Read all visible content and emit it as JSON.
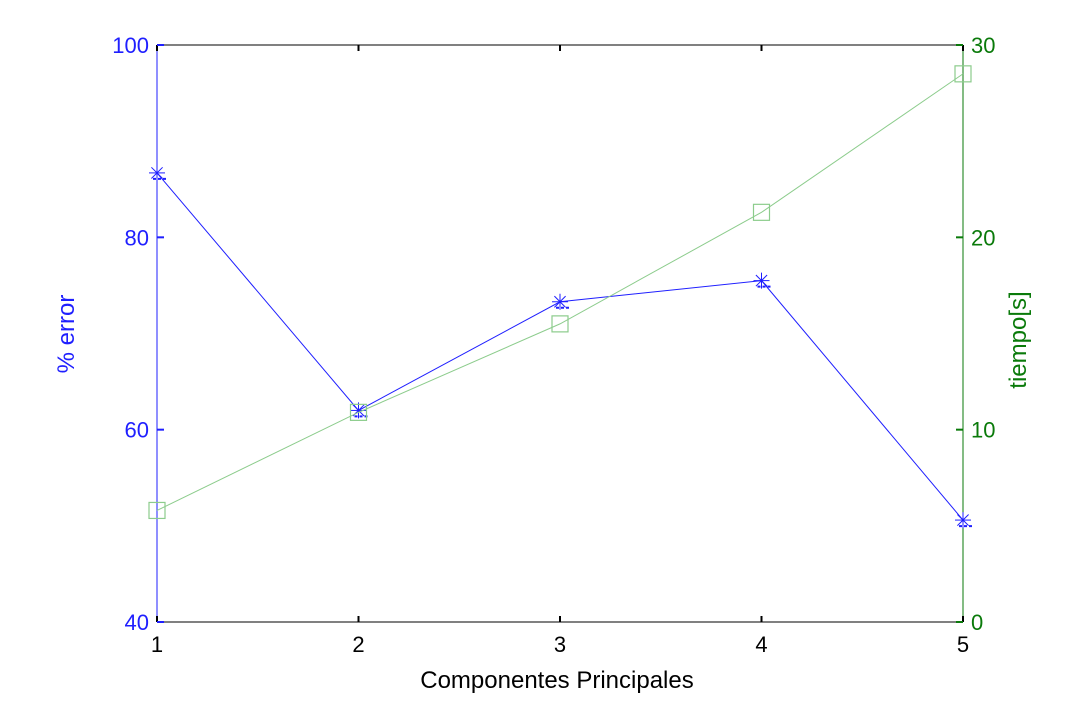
{
  "chart_data": {
    "type": "line",
    "xlabel": "Componentes Principales",
    "ylabel": "% error",
    "ylabel_right": "tiempo[s]",
    "x": [
      1,
      2,
      3,
      4,
      5
    ],
    "x_ticks": [
      "1",
      "2",
      "3",
      "4",
      "5"
    ],
    "xlim": [
      1,
      5
    ],
    "ylim": [
      40,
      100
    ],
    "y_ticks": [
      "40",
      "60",
      "80",
      "100"
    ],
    "ylim_right": [
      0,
      30
    ],
    "y_ticks_right": [
      "0",
      "10",
      "20",
      "30"
    ],
    "grid": false,
    "series": [
      {
        "axis": "left",
        "marker": "asterisk",
        "color": "#1f1fff",
        "values": [
          86.7,
          62.0,
          73.3,
          75.5,
          50.6
        ]
      },
      {
        "axis": "right",
        "marker": "square",
        "color": "#8ccc8c",
        "values": [
          5.8,
          10.9,
          15.5,
          21.3,
          28.5
        ]
      }
    ],
    "colors": {
      "left_axis": "#1f1fff",
      "right_axis": "#0a7a0a",
      "x_axis": "#000000"
    }
  }
}
